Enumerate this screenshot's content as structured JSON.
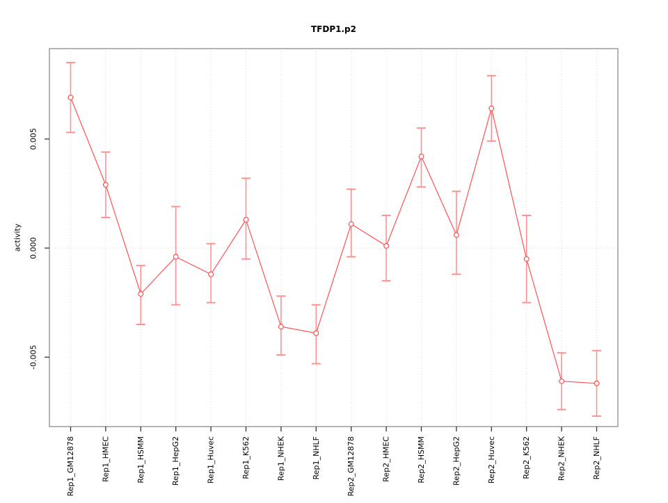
{
  "chart_data": {
    "type": "line",
    "title": "TFDP1.p2",
    "xlabel": "",
    "ylabel": "activity",
    "categories": [
      "Rep1_GM12878",
      "Rep1_HMEC",
      "Rep1_HSMM",
      "Rep1_HepG2",
      "Rep1_Huvec",
      "Rep1_K562",
      "Rep1_NHEK",
      "Rep1_NHLF",
      "Rep2_GM12878",
      "Rep2_HMEC",
      "Rep2_HSMM",
      "Rep2_HepG2",
      "Rep2_Huvec",
      "Rep2_K562",
      "Rep2_NHEK",
      "Rep2_NHLF"
    ],
    "series": [
      {
        "name": "activity",
        "values": [
          0.0069,
          0.0029,
          -0.0021,
          -0.0004,
          -0.0012,
          0.0013,
          -0.0036,
          -0.0039,
          0.0011,
          0.0001,
          0.0042,
          0.0006,
          0.0064,
          -0.0005,
          -0.0061,
          -0.0062
        ],
        "lower": [
          0.0053,
          0.0014,
          -0.0035,
          -0.0026,
          -0.0025,
          -0.0005,
          -0.0049,
          -0.0053,
          -0.0004,
          -0.0015,
          0.0028,
          -0.0012,
          0.0049,
          -0.0025,
          -0.0074,
          -0.0077
        ],
        "upper": [
          0.0085,
          0.0044,
          -0.0008,
          0.0019,
          0.0002,
          0.0032,
          -0.0022,
          -0.0026,
          0.0027,
          0.0015,
          0.0055,
          0.0026,
          0.0079,
          0.0015,
          -0.0048,
          -0.0047
        ]
      }
    ],
    "yticks": [
      -0.005,
      0.0,
      0.005
    ],
    "ytick_labels": [
      "-0.005",
      "0.000",
      "0.005"
    ],
    "ylim": [
      -0.00818,
      0.00914
    ],
    "grid": {
      "vertical_per_category": true,
      "horizontal_at_zero": true
    },
    "legend": "none",
    "point_style": "open-circle",
    "colors": {
      "line": "#ff5050",
      "point": "#ff5050",
      "errorbar": "#ff9090",
      "grid": "#d4d4d4",
      "box": "#8c8c8c",
      "tick": "#333333",
      "text": "#000000"
    }
  }
}
